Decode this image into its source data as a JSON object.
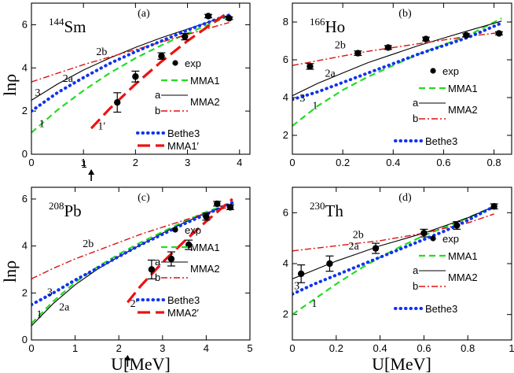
{
  "figure": {
    "ylabel": "lnρ",
    "xlabel": "U[MeV]"
  },
  "chart_data": [
    {
      "type": "line",
      "panel": "(a)",
      "nucleus_mass": "144",
      "nucleus_symbol": "Sm",
      "xlim": [
        0,
        4.2
      ],
      "ylim": [
        0,
        7
      ],
      "xticks": [
        0,
        1,
        2,
        3,
        4
      ],
      "yticks": [
        0,
        2,
        4,
        6
      ],
      "arrow_x": 1.15,
      "arrow_label": "1",
      "legend": {
        "exp": "exp",
        "mma1": "MMA1",
        "mma2": "MMA2",
        "a": "a",
        "b": "b",
        "bethe3": "Bethe3",
        "mma1p": "MMA1′"
      },
      "series": [
        {
          "name": "MMA1 (1)",
          "style": "green-dash",
          "x": [
            0,
            0.5,
            1,
            1.5,
            2,
            2.5,
            3,
            3.5,
            3.8
          ],
          "y": [
            1.0,
            2.05,
            2.95,
            3.75,
            4.45,
            5.05,
            5.6,
            6.1,
            6.4
          ]
        },
        {
          "name": "MMA2 a (2a)",
          "style": "black-solid",
          "x": [
            0,
            0.5,
            1,
            1.5,
            2,
            2.5,
            3,
            3.5,
            3.8
          ],
          "y": [
            2.5,
            3.25,
            3.9,
            4.45,
            4.95,
            5.4,
            5.8,
            6.2,
            6.45
          ]
        },
        {
          "name": "MMA2 b (2b)",
          "style": "red-dashdot",
          "x": [
            0,
            0.5,
            1,
            1.5,
            2,
            2.5,
            3,
            3.5,
            3.8
          ],
          "y": [
            3.35,
            3.75,
            4.15,
            4.5,
            4.85,
            5.2,
            5.55,
            5.9,
            6.1
          ]
        },
        {
          "name": "Bethe3 (3)",
          "style": "blue-dot",
          "x": [
            0,
            0.5,
            1,
            1.5,
            2,
            2.5,
            3,
            3.5,
            3.8
          ],
          "y": [
            2.0,
            2.85,
            3.55,
            4.2,
            4.75,
            5.25,
            5.75,
            6.2,
            6.45
          ]
        },
        {
          "name": "MMA1′ (1′)",
          "style": "red-longdash",
          "x": [
            1.15,
            1.5,
            2,
            2.5,
            3,
            3.5,
            3.8
          ],
          "y": [
            1.2,
            2.1,
            3.25,
            4.3,
            5.25,
            6.1,
            6.6
          ]
        }
      ],
      "exp": {
        "x": [
          1.65,
          2.0,
          2.5,
          2.95,
          3.4,
          3.8
        ],
        "y": [
          2.4,
          3.6,
          4.55,
          5.45,
          6.4,
          6.3
        ],
        "err": [
          0.45,
          0.25,
          0.15,
          0.15,
          0.08,
          0.06
        ]
      },
      "curve_labels": [
        {
          "text": "1",
          "x": 0.2,
          "y": 1.25
        },
        {
          "text": "2a",
          "x": 0.7,
          "y": 3.35
        },
        {
          "text": "2b",
          "x": 1.35,
          "y": 4.6
        },
        {
          "text": "3",
          "x": 0.12,
          "y": 2.7
        },
        {
          "text": "1′",
          "x": 1.35,
          "y": 1.15
        }
      ]
    },
    {
      "type": "line",
      "panel": "(b)",
      "nucleus_mass": "166",
      "nucleus_symbol": "Ho",
      "xlim": [
        0,
        0.87
      ],
      "ylim": [
        1,
        9
      ],
      "xticks": [
        0,
        0.2,
        0.4,
        0.6,
        0.8
      ],
      "yticks": [
        2,
        4,
        6,
        8
      ],
      "legend": {
        "exp": "exp",
        "mma1": "MMA1",
        "mma2": "MMA2",
        "a": "a",
        "b": "b",
        "bethe3": "Bethe3"
      },
      "series": [
        {
          "name": "MMA1 (1)",
          "style": "green-dash",
          "x": [
            0,
            0.1,
            0.2,
            0.3,
            0.4,
            0.5,
            0.6,
            0.7,
            0.83
          ],
          "y": [
            2.5,
            3.55,
            4.4,
            5.1,
            5.7,
            6.3,
            6.8,
            7.3,
            8.2
          ]
        },
        {
          "name": "MMA2 a (2a)",
          "style": "black-solid",
          "x": [
            0,
            0.1,
            0.2,
            0.3,
            0.4,
            0.5,
            0.6,
            0.7,
            0.83
          ],
          "y": [
            4.1,
            4.75,
            5.3,
            5.85,
            6.3,
            6.75,
            7.15,
            7.55,
            8.05
          ]
        },
        {
          "name": "MMA2 b (2b)",
          "style": "red-dashdot",
          "x": [
            0,
            0.1,
            0.2,
            0.3,
            0.4,
            0.5,
            0.6,
            0.7,
            0.83
          ],
          "y": [
            5.7,
            5.95,
            6.2,
            6.45,
            6.65,
            6.85,
            7.05,
            7.25,
            7.45
          ]
        },
        {
          "name": "Bethe3 (3)",
          "style": "blue-dot",
          "x": [
            0,
            0.1,
            0.2,
            0.3,
            0.4,
            0.5,
            0.6,
            0.7,
            0.83
          ],
          "y": [
            3.9,
            4.3,
            4.8,
            5.3,
            5.8,
            6.3,
            6.75,
            7.2,
            7.95
          ]
        }
      ],
      "exp": {
        "x": [
          0.07,
          0.26,
          0.38,
          0.53,
          0.69,
          0.82
        ],
        "y": [
          5.65,
          6.35,
          6.65,
          7.1,
          7.3,
          7.4
        ],
        "err": [
          0.15,
          0.12,
          0.1,
          0.1,
          0.08,
          0.08
        ]
      },
      "curve_labels": [
        {
          "text": "1",
          "x": 0.09,
          "y": 3.4
        },
        {
          "text": "2a",
          "x": 0.15,
          "y": 5.1
        },
        {
          "text": "2b",
          "x": 0.19,
          "y": 6.6
        },
        {
          "text": "3",
          "x": 0.04,
          "y": 3.8
        }
      ]
    },
    {
      "type": "line",
      "panel": "(c)",
      "nucleus_mass": "208",
      "nucleus_symbol": "Pb",
      "xlim": [
        0,
        5
      ],
      "ylim": [
        0,
        6.5
      ],
      "xticks": [
        0,
        1,
        2,
        3,
        4,
        5
      ],
      "yticks": [
        0,
        2,
        4,
        6
      ],
      "arrow_x": 2.2,
      "legend": {
        "exp": "exp",
        "mma1": "MMA1",
        "mma2": "MMA2",
        "a": "a",
        "b": "b",
        "bethe3": "Bethe3",
        "mma2p": "MMA2′"
      },
      "series": [
        {
          "name": "MMA1 (1)",
          "style": "green-dash",
          "x": [
            0,
            0.5,
            1,
            1.5,
            2,
            2.5,
            3,
            3.5,
            4,
            4.6
          ],
          "y": [
            0.7,
            1.65,
            2.45,
            3.1,
            3.65,
            4.15,
            4.6,
            5.05,
            5.45,
            5.85
          ]
        },
        {
          "name": "MMA2 a (2a)",
          "style": "black-solid",
          "x": [
            0,
            0.5,
            1,
            1.5,
            2,
            2.5,
            3,
            3.5,
            4,
            4.6
          ],
          "y": [
            0.6,
            1.55,
            2.35,
            3.0,
            3.55,
            4.05,
            4.55,
            5.0,
            5.4,
            5.8
          ]
        },
        {
          "name": "MMA2 b (2b)",
          "style": "red-dashdot",
          "x": [
            0,
            0.5,
            1,
            1.5,
            2,
            2.5,
            3,
            3.5,
            4,
            4.6
          ],
          "y": [
            2.6,
            3.05,
            3.45,
            3.8,
            4.15,
            4.5,
            4.8,
            5.1,
            5.4,
            5.7
          ]
        },
        {
          "name": "Bethe3 (3)",
          "style": "blue-dot",
          "x": [
            0,
            0.5,
            1,
            1.5,
            2,
            2.5,
            3,
            3.5,
            4,
            4.6
          ],
          "y": [
            1.5,
            2.0,
            2.55,
            3.05,
            3.55,
            4.05,
            4.5,
            4.95,
            5.35,
            5.85
          ]
        },
        {
          "name": "MMA2′ (2′)",
          "style": "red-longdash",
          "x": [
            2.2,
            2.5,
            3,
            3.5,
            4,
            4.6
          ],
          "y": [
            1.6,
            2.3,
            3.3,
            4.2,
            5.05,
            6.0
          ]
        }
      ],
      "exp": {
        "x": [
          2.75,
          3.2,
          3.6,
          4.0,
          4.25,
          4.55
        ],
        "y": [
          3.0,
          3.45,
          4.05,
          5.25,
          5.8,
          5.65
        ],
        "err": [
          0.4,
          0.3,
          0.2,
          0.15,
          0.1,
          0.1
        ]
      },
      "curve_labels": [
        {
          "text": "1",
          "x": 0.18,
          "y": 0.95
        },
        {
          "text": "2a",
          "x": 0.75,
          "y": 1.25
        },
        {
          "text": "2b",
          "x": 1.3,
          "y": 3.95
        },
        {
          "text": "3",
          "x": 0.42,
          "y": 1.9
        },
        {
          "text": "2′",
          "x": 2.35,
          "y": 1.4
        }
      ]
    },
    {
      "type": "line",
      "panel": "(d)",
      "nucleus_mass": "230",
      "nucleus_symbol": "Th",
      "xlim": [
        0,
        1.0
      ],
      "ylim": [
        1,
        7
      ],
      "xticks": [
        0,
        0.2,
        0.4,
        0.6,
        0.8,
        1
      ],
      "yticks": [
        2,
        4,
        6
      ],
      "legend": {
        "exp": "exp",
        "mma1": "MMA1",
        "mma2": "MMA2",
        "a": "a",
        "b": "b",
        "bethe3": "Bethe3"
      },
      "series": [
        {
          "name": "MMA1 (1)",
          "style": "green-dash",
          "x": [
            0,
            0.1,
            0.2,
            0.3,
            0.4,
            0.5,
            0.6,
            0.7,
            0.8,
            0.92
          ],
          "y": [
            2.0,
            2.6,
            3.2,
            3.75,
            4.25,
            4.7,
            5.1,
            5.45,
            5.8,
            6.25
          ]
        },
        {
          "name": "MMA2 a (2a)",
          "style": "black-solid",
          "x": [
            0,
            0.1,
            0.2,
            0.3,
            0.4,
            0.5,
            0.6,
            0.7,
            0.8,
            0.92
          ],
          "y": [
            3.4,
            3.75,
            4.1,
            4.4,
            4.7,
            4.95,
            5.2,
            5.5,
            5.8,
            6.25
          ]
        },
        {
          "name": "MMA2 b (2b)",
          "style": "red-dashdot",
          "x": [
            0,
            0.1,
            0.2,
            0.3,
            0.4,
            0.5,
            0.6,
            0.7,
            0.8,
            0.92
          ],
          "y": [
            4.5,
            4.6,
            4.7,
            4.8,
            4.9,
            5.05,
            5.2,
            5.4,
            5.6,
            5.95
          ]
        },
        {
          "name": "Bethe3 (3)",
          "style": "blue-dot",
          "x": [
            0,
            0.1,
            0.2,
            0.3,
            0.4,
            0.5,
            0.6,
            0.7,
            0.8,
            0.92
          ],
          "y": [
            2.8,
            3.2,
            3.55,
            3.9,
            4.25,
            4.6,
            4.95,
            5.3,
            5.7,
            6.25
          ]
        }
      ],
      "exp": {
        "x": [
          0.04,
          0.17,
          0.38,
          0.6,
          0.75,
          0.92
        ],
        "y": [
          3.6,
          4.0,
          4.6,
          5.2,
          5.5,
          6.25
        ],
        "err": [
          0.35,
          0.3,
          0.2,
          0.15,
          0.15,
          0.1
        ]
      },
      "curve_labels": [
        {
          "text": "1",
          "x": 0.1,
          "y": 2.3
        },
        {
          "text": "2a",
          "x": 0.28,
          "y": 4.55
        },
        {
          "text": "2b",
          "x": 0.3,
          "y": 5.0
        },
        {
          "text": "3",
          "x": 0.02,
          "y": 3.0
        }
      ]
    }
  ]
}
